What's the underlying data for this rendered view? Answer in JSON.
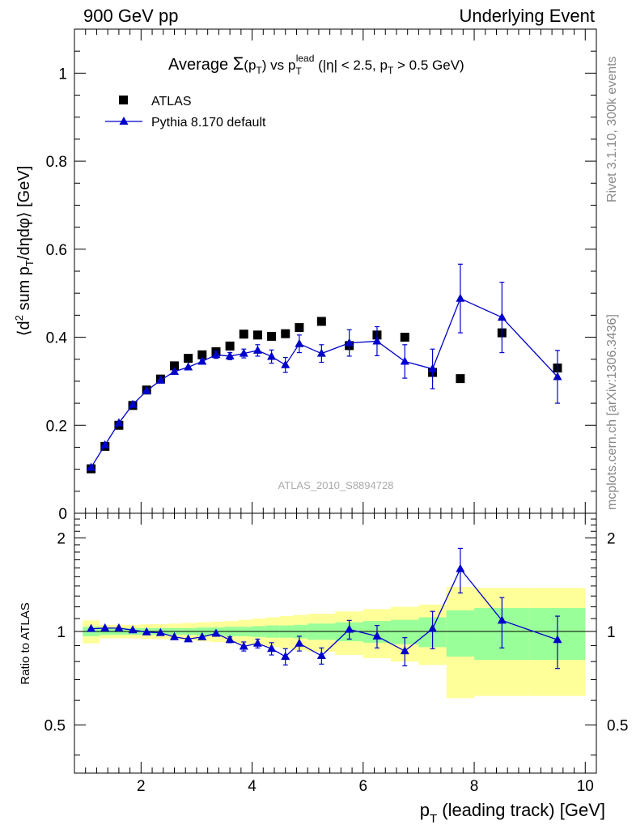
{
  "header": {
    "left": "900 GeV pp",
    "right": "Underlying Event"
  },
  "side": {
    "rivet": "Rivet 3.1.10,  300k events",
    "mcplots": "mcplots.cern.ch [arXiv:1306.3436]"
  },
  "watermark": "ATLAS_2010_S8894728",
  "colors": {
    "atlas": "#000000",
    "pythia": "#0000cc",
    "band_inner": "#99ff99",
    "band_outer": "#ffff99"
  },
  "chart_data": [
    {
      "type": "scatter",
      "panel": "main",
      "title": {
        "prefix": "Average ",
        "sigma": "Σ",
        "sig_arg_open": "(p",
        "sig_arg_sub": "T",
        "sig_arg_close": ")",
        "vs": " vs p",
        "vs_sub": "T",
        "vs_sup": "lead",
        "cuts_a": " (|η| < 2.5, p",
        "cuts_sub": "T",
        "cuts_b": " > 0.5 GeV)"
      },
      "ylabel": {
        "a": "⟨d",
        "sup": "2",
        "b": " sum p",
        "sub": "T",
        "c": "/dηdφ⟩ [GeV]"
      },
      "xlim": [
        0.8,
        10.2
      ],
      "ylim": [
        0,
        1.1
      ],
      "yticks": [
        0,
        0.2,
        0.4,
        0.6,
        0.8,
        1
      ],
      "yticklabels": [
        "0",
        "0.2",
        "0.4",
        "0.6",
        "0.8",
        "1"
      ],
      "legend": {
        "position": "top-left",
        "atlas": "ATLAS",
        "pythia": "Pythia 8.170 default"
      },
      "series": [
        {
          "name": "ATLAS",
          "x": [
            1.1,
            1.35,
            1.6,
            1.85,
            2.1,
            2.35,
            2.6,
            2.85,
            3.1,
            3.35,
            3.6,
            3.85,
            4.1,
            4.35,
            4.6,
            4.85,
            5.25,
            5.75,
            6.25,
            6.75,
            7.25,
            7.75,
            8.5,
            9.5
          ],
          "y": [
            0.101,
            0.152,
            0.2,
            0.245,
            0.28,
            0.305,
            0.335,
            0.352,
            0.36,
            0.367,
            0.38,
            0.407,
            0.405,
            0.402,
            0.408,
            0.422,
            0.436,
            0.381,
            0.405,
            0.4,
            0.32,
            0.306,
            0.41,
            0.33
          ]
        },
        {
          "name": "Pythia 8.170 default",
          "x": [
            1.1,
            1.35,
            1.6,
            1.85,
            2.1,
            2.35,
            2.6,
            2.85,
            3.1,
            3.35,
            3.6,
            3.85,
            4.1,
            4.35,
            4.6,
            4.85,
            5.25,
            5.75,
            6.25,
            6.75,
            7.25,
            7.75,
            8.5,
            9.5
          ],
          "y": [
            0.104,
            0.155,
            0.205,
            0.247,
            0.278,
            0.302,
            0.322,
            0.332,
            0.345,
            0.36,
            0.357,
            0.363,
            0.37,
            0.356,
            0.337,
            0.385,
            0.363,
            0.387,
            0.391,
            0.345,
            0.328,
            0.488,
            0.445,
            0.31
          ],
          "yerr": [
            0,
            0,
            0,
            0,
            0,
            0,
            0,
            0,
            0.005,
            0.008,
            0.008,
            0.01,
            0.013,
            0.015,
            0.017,
            0.02,
            0.02,
            0.03,
            0.033,
            0.038,
            0.045,
            0.078,
            0.08,
            0.06
          ]
        }
      ]
    },
    {
      "type": "line",
      "panel": "ratio",
      "ylabel": "Ratio to ATLAS",
      "xlabel": {
        "a": "p",
        "sub": "T",
        "b": " (leading track) [GeV]"
      },
      "xlim": [
        0.8,
        10.2
      ],
      "ylim": [
        0.35,
        2.4
      ],
      "log_y": true,
      "xticks": [
        2,
        4,
        6,
        8,
        10
      ],
      "xticklabels": [
        "2",
        "4",
        "6",
        "8",
        "10"
      ],
      "yticks": [
        0.5,
        1,
        2
      ],
      "yticklabels": [
        "0.5",
        "1",
        "2"
      ],
      "bands": {
        "edges": [
          0.95,
          1.25,
          1.5,
          1.75,
          2.0,
          2.25,
          2.5,
          2.75,
          3.0,
          3.25,
          3.5,
          3.75,
          4.0,
          4.25,
          4.5,
          4.75,
          5.0,
          5.5,
          6.0,
          6.5,
          7.0,
          7.5,
          8.0,
          9.0,
          10.0
        ],
        "inner": [
          0.035,
          0.025,
          0.025,
          0.025,
          0.025,
          0.025,
          0.025,
          0.025,
          0.03,
          0.03,
          0.035,
          0.035,
          0.04,
          0.045,
          0.045,
          0.05,
          0.06,
          0.07,
          0.08,
          0.09,
          0.11,
          0.17,
          0.19,
          0.19
        ],
        "outer": [
          0.085,
          0.05,
          0.05,
          0.05,
          0.055,
          0.055,
          0.06,
          0.065,
          0.07,
          0.075,
          0.08,
          0.09,
          0.1,
          0.11,
          0.12,
          0.13,
          0.14,
          0.16,
          0.18,
          0.2,
          0.22,
          0.39,
          0.38,
          0.38
        ]
      },
      "series": [
        {
          "name": "Pythia 8.170 default",
          "x": [
            1.1,
            1.35,
            1.6,
            1.85,
            2.1,
            2.35,
            2.6,
            2.85,
            3.1,
            3.35,
            3.6,
            3.85,
            4.1,
            4.35,
            4.6,
            4.85,
            5.25,
            5.75,
            6.25,
            6.75,
            7.25,
            7.75,
            8.5,
            9.5
          ],
          "y": [
            1.02,
            1.025,
            1.025,
            1.01,
            0.995,
            0.99,
            0.96,
            0.945,
            0.96,
            0.985,
            0.94,
            0.895,
            0.915,
            0.88,
            0.83,
            0.915,
            0.835,
            1.015,
            0.965,
            0.865,
            1.02,
            1.59,
            1.085,
            0.94
          ],
          "yerr": [
            0,
            0,
            0,
            0,
            0,
            0,
            0,
            0,
            0,
            0,
            0.02,
            0.03,
            0.03,
            0.04,
            0.05,
            0.05,
            0.05,
            0.07,
            0.08,
            0.09,
            0.14,
            0.26,
            0.2,
            0.18
          ]
        }
      ]
    }
  ]
}
